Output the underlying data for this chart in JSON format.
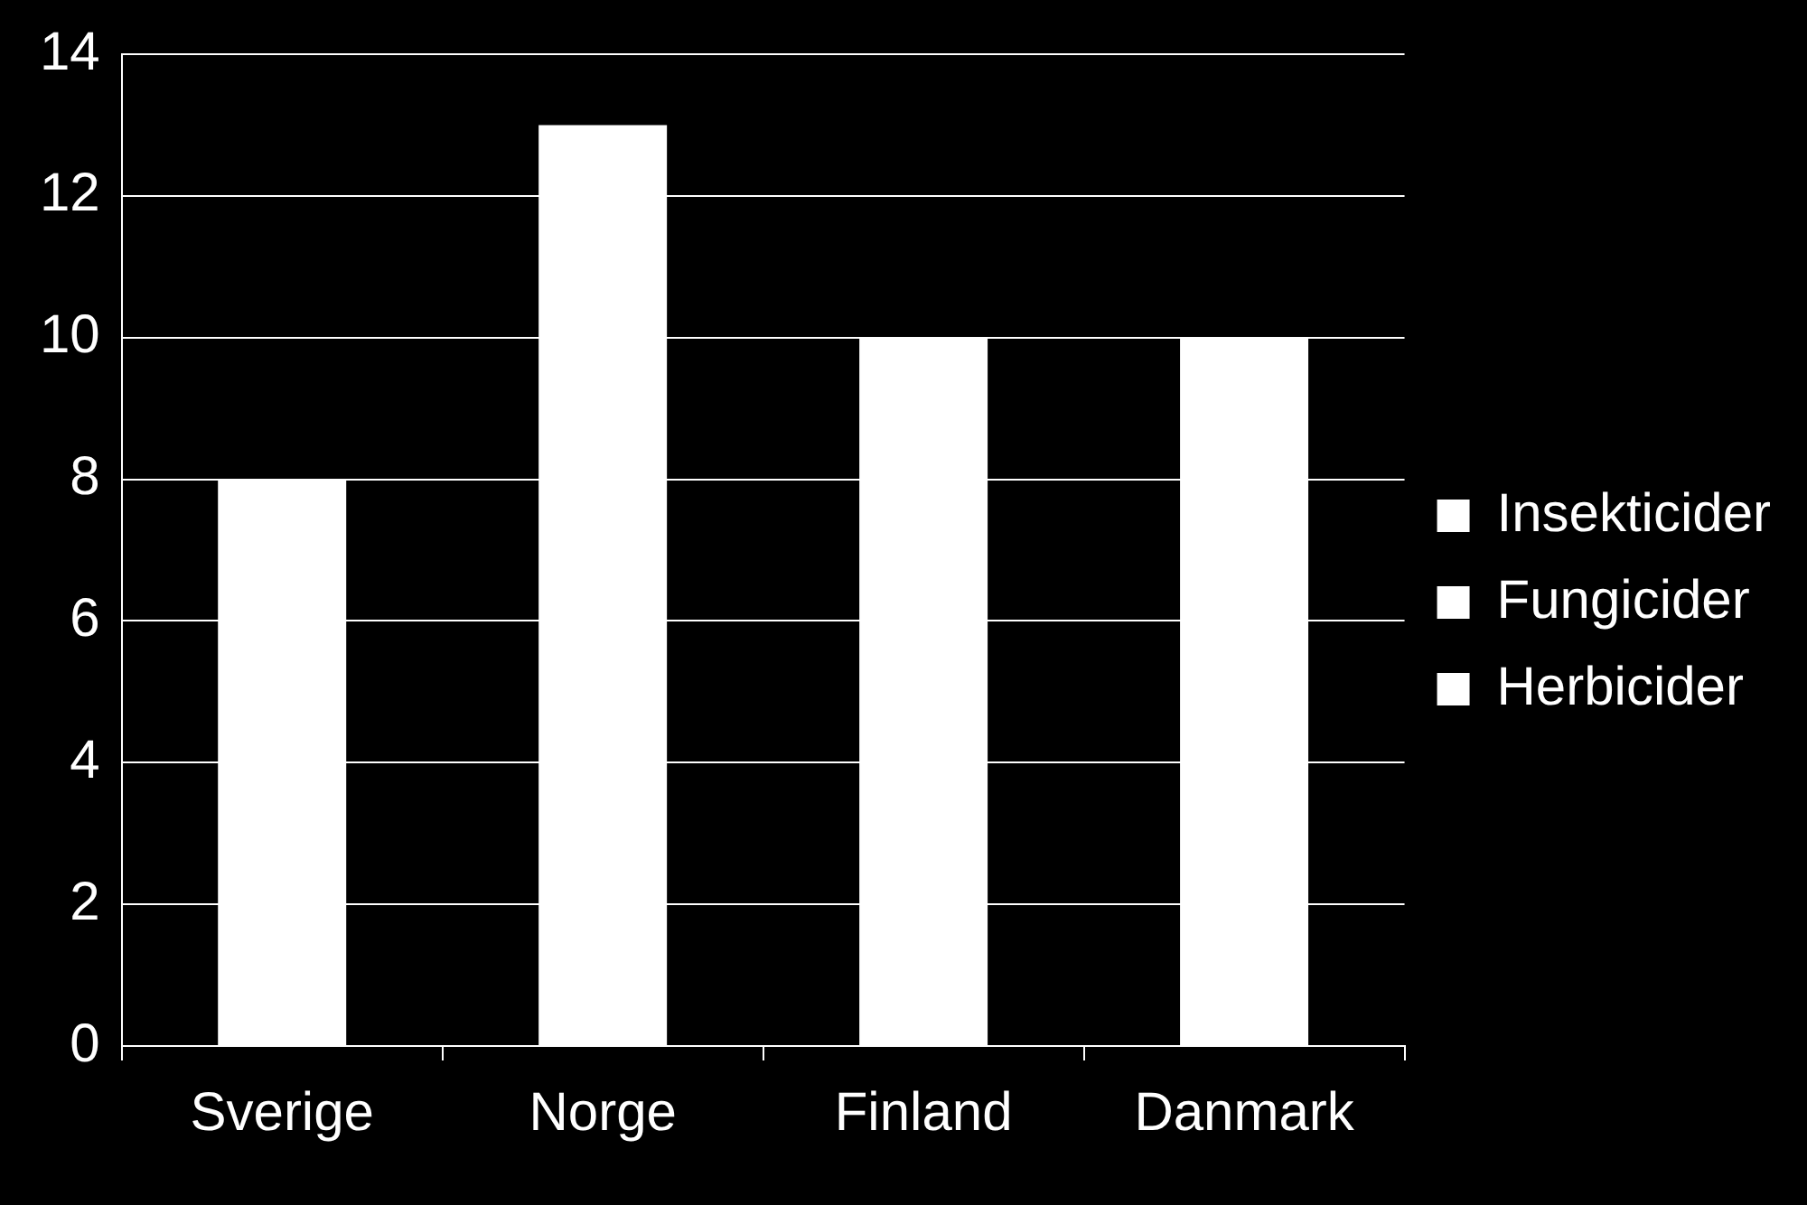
{
  "chart_data": {
    "type": "bar",
    "categories": [
      "Sverige",
      "Norge",
      "Finland",
      "Danmark"
    ],
    "series": [
      {
        "name": "Insekticider",
        "color": "#ffffff",
        "values": [
          8,
          13,
          10,
          10
        ]
      },
      {
        "name": "Fungicider",
        "color": "#ffffff",
        "values": [
          null,
          null,
          null,
          null
        ]
      },
      {
        "name": "Herbicider",
        "color": "#ffffff",
        "values": [
          null,
          null,
          null,
          null
        ]
      }
    ],
    "stacked": true,
    "ylim": [
      0,
      14
    ],
    "yticks": [
      0,
      2,
      4,
      6,
      8,
      10,
      12,
      14
    ],
    "grid": "y",
    "legend": "right"
  }
}
